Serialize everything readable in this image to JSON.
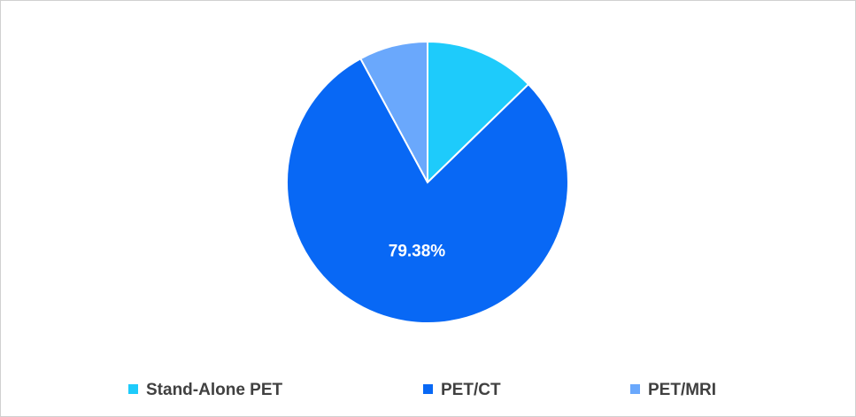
{
  "chart_data": {
    "type": "pie",
    "categories": [
      "Stand-Alone PET",
      "PET/CT",
      "PET/MRI"
    ],
    "values": [
      12.72,
      79.38,
      7.9
    ],
    "value_labels": [
      null,
      "79.38%",
      null
    ],
    "colors": [
      "#1ecbfb",
      "#0868f5",
      "#6aa8fc"
    ],
    "legend": "bottom"
  }
}
